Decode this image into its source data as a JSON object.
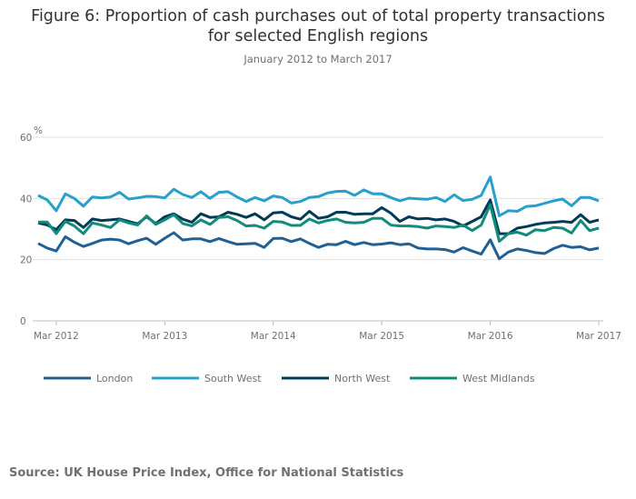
{
  "chart_data": {
    "type": "line",
    "title": "Figure 6: Proportion of cash purchases out of total property transactions for selected English regions",
    "title_line1": "Figure 6: Proportion of cash purchases out of total property transactions",
    "title_line2": "for selected English regions",
    "subtitle": "January 2012 to March 2017",
    "ylabel": "%",
    "ylim": [
      0,
      60
    ],
    "yticks": [
      "0",
      "20",
      "40",
      "60"
    ],
    "x_start": "Jan 2012",
    "x_end": "Mar 2017",
    "xticks": [
      {
        "label": "Mar 2012",
        "index": 2
      },
      {
        "label": "Mar 2013",
        "index": 14
      },
      {
        "label": "Mar 2014",
        "index": 26
      },
      {
        "label": "Mar 2015",
        "index": 38
      },
      {
        "label": "Mar 2016",
        "index": 50
      },
      {
        "label": "Mar 2017",
        "index": 62
      }
    ],
    "legend_position": "bottom",
    "series": [
      {
        "name": "London",
        "color": "#206095",
        "values": [
          25.3,
          23.8,
          22.8,
          27.5,
          25.7,
          24.3,
          25.3,
          26.4,
          26.7,
          26.4,
          25.2,
          26.2,
          27.0,
          25.0,
          27.0,
          28.8,
          26.4,
          26.8,
          26.8,
          25.9,
          26.9,
          25.9,
          25.0,
          25.2,
          25.3,
          24.0,
          26.9,
          27.0,
          25.9,
          26.8,
          25.3,
          24.0,
          25.0,
          24.9,
          26.0,
          24.9,
          25.6,
          24.9,
          25.1,
          25.5,
          24.9,
          25.2,
          23.8,
          23.5,
          23.5,
          23.3,
          22.5,
          23.9,
          22.8,
          21.8,
          26.5,
          20.3,
          22.5,
          23.5,
          23.0,
          22.3,
          22.0,
          23.6,
          24.7,
          24.0,
          24.2,
          23.2,
          23.8
        ]
      },
      {
        "name": "South West",
        "color": "#27a0cc",
        "values": [
          41.0,
          39.5,
          36.0,
          41.5,
          40.0,
          37.5,
          40.5,
          40.2,
          40.5,
          42.0,
          39.8,
          40.2,
          40.7,
          40.6,
          40.2,
          43.0,
          41.3,
          40.3,
          42.2,
          40.0,
          42.0,
          42.2,
          40.5,
          39.0,
          40.3,
          39.2,
          40.8,
          40.3,
          38.5,
          39.0,
          40.3,
          40.6,
          41.8,
          42.3,
          42.4,
          41.0,
          42.8,
          41.5,
          41.5,
          40.3,
          39.2,
          40.1,
          39.9,
          39.7,
          40.3,
          39.0,
          41.2,
          39.3,
          39.7,
          41.0,
          47.0,
          34.3,
          36.0,
          35.8,
          37.4,
          37.6,
          38.4,
          39.2,
          39.8,
          37.6,
          40.3,
          40.3,
          39.2
        ]
      },
      {
        "name": "North West",
        "color": "#003c57",
        "values": [
          32.0,
          31.3,
          29.8,
          33.0,
          32.8,
          30.5,
          33.3,
          32.8,
          33.0,
          33.3,
          32.5,
          31.7,
          34.0,
          31.8,
          34.0,
          35.0,
          33.2,
          32.2,
          35.0,
          33.8,
          34.0,
          35.5,
          34.8,
          33.8,
          35.0,
          33.0,
          35.3,
          35.5,
          34.0,
          33.2,
          35.8,
          33.5,
          34.0,
          35.5,
          35.5,
          34.8,
          35.0,
          35.0,
          37.0,
          35.2,
          32.5,
          34.0,
          33.3,
          33.5,
          33.0,
          33.3,
          32.5,
          31.0,
          32.5,
          34.0,
          39.5,
          28.5,
          28.5,
          30.3,
          30.8,
          31.5,
          32.0,
          32.2,
          32.5,
          32.2,
          34.7,
          32.2,
          33.0
        ]
      },
      {
        "name": "West Midlands",
        "color": "#118c7b",
        "values": [
          32.3,
          32.3,
          28.5,
          32.5,
          31.0,
          28.5,
          32.0,
          31.3,
          30.5,
          33.0,
          32.0,
          31.3,
          34.3,
          31.5,
          33.0,
          34.7,
          31.8,
          31.0,
          33.0,
          31.5,
          33.8,
          34.0,
          32.8,
          31.0,
          31.2,
          30.3,
          32.5,
          32.3,
          31.2,
          31.2,
          33.3,
          32.0,
          32.8,
          33.3,
          32.2,
          32.0,
          32.2,
          33.5,
          33.5,
          31.3,
          31.0,
          31.0,
          30.8,
          30.3,
          31.0,
          30.8,
          30.5,
          31.3,
          29.5,
          31.3,
          38.0,
          26.0,
          28.5,
          29.0,
          28.0,
          29.8,
          29.5,
          30.5,
          30.3,
          28.7,
          32.8,
          29.5,
          30.3
        ]
      }
    ]
  },
  "source": "Source: UK House Price Index, Office for National Statistics"
}
